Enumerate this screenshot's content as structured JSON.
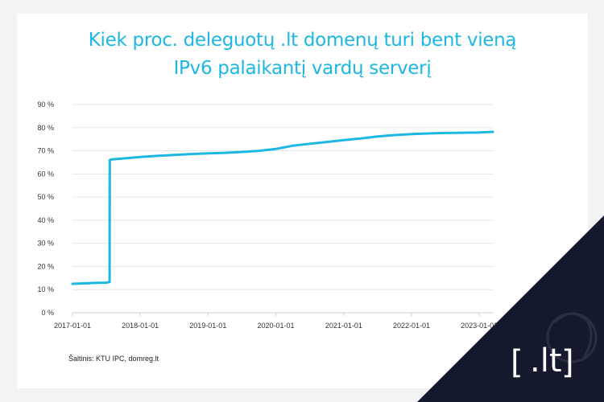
{
  "title_lines": [
    "Kiek proc. deleguotų .lt domenų turi bent vieną",
    "IPv6 palaikantį vardų serverį"
  ],
  "source": "Šaltinis: KTU IPC, domreg.lt",
  "logo": {
    "text": ".lt",
    "bracket_left": "[",
    "bracket_right": "]"
  },
  "colors": {
    "line": "#1cb8e3",
    "title": "#1cb8e3",
    "corner": "#15192d",
    "grid": "#e3e6ea"
  },
  "chart_data": {
    "type": "line",
    "title": "Kiek proc. deleguotų .lt domenų turi bent vieną IPv6 palaikantį vardų serverį",
    "xlabel": "",
    "ylabel": "",
    "x_ticks": [
      "2017-01-01",
      "2018-01-01",
      "2019-01-01",
      "2020-01-01",
      "2021-01-01",
      "2022-01-01",
      "2023-01-01"
    ],
    "y_ticks": [
      "0 %",
      "10 %",
      "20 %",
      "30 %",
      "40 %",
      "50 %",
      "60 %",
      "70 %",
      "80 %",
      "90 %"
    ],
    "ylim": [
      0,
      90
    ],
    "xlim": [
      "2017-01-01",
      "2023-03-15"
    ],
    "grid": true,
    "series": [
      {
        "x": [
          "2017-01-01",
          "2017-03-01",
          "2017-05-01",
          "2017-07-01",
          "2017-07-20",
          "2017-07-21",
          "2017-08-01",
          "2017-10-01",
          "2018-01-01",
          "2018-04-01",
          "2018-07-01",
          "2018-10-01",
          "2019-01-01",
          "2019-04-01",
          "2019-07-01",
          "2019-10-01",
          "2020-01-01",
          "2020-04-01",
          "2020-07-01",
          "2020-10-01",
          "2021-01-01",
          "2021-04-01",
          "2021-07-01",
          "2021-10-01",
          "2022-01-01",
          "2022-04-01",
          "2022-07-01",
          "2022-10-01",
          "2023-01-01",
          "2023-03-15"
        ],
        "y": [
          12.5,
          12.7,
          12.9,
          13.0,
          13.3,
          66.0,
          66.3,
          66.7,
          67.3,
          67.8,
          68.2,
          68.6,
          68.9,
          69.1,
          69.5,
          70.0,
          70.8,
          72.2,
          73.0,
          73.8,
          74.6,
          75.3,
          76.2,
          76.8,
          77.2,
          77.5,
          77.7,
          77.8,
          77.9,
          78.2
        ]
      }
    ]
  }
}
